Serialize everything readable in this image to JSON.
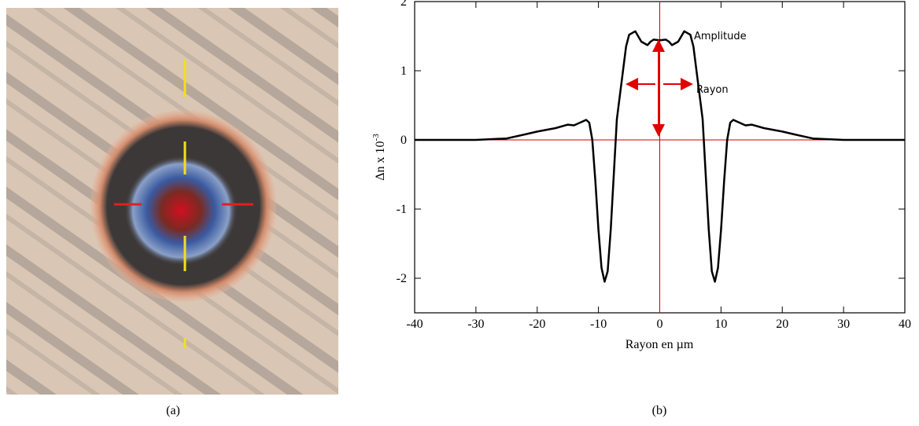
{
  "chart_data": {
    "type": "line",
    "panel_a_caption": "(a)",
    "panel_b_caption": "(b)",
    "xlabel": "Rayon en µm",
    "ylabel": "Δn x 10",
    "ylabel_exponent": "-3",
    "annotations": [
      "Amplitude",
      "Rayon"
    ],
    "xlim": [
      -40,
      40
    ],
    "xticks": [
      -40,
      -30,
      -20,
      -10,
      0,
      10,
      20,
      30,
      40
    ],
    "ylim": [
      -2.5,
      2
    ],
    "yticks": [
      -2,
      -1,
      0,
      1,
      2
    ],
    "series": [
      {
        "color": "#000000",
        "x": [
          -40,
          -30,
          -25,
          -22,
          -20,
          -17,
          -15,
          -14,
          -13,
          -12,
          -11.5,
          -11,
          -10.5,
          -10,
          -9.5,
          -9,
          -8.5,
          -8,
          -7.5,
          -7,
          -6,
          -5.5,
          -5,
          -4,
          -3,
          -2,
          -1.5,
          -1,
          0,
          1,
          1.5,
          2,
          3,
          4,
          5,
          5.5,
          6,
          7,
          7.5,
          8,
          8.5,
          9,
          9.5,
          10,
          10.5,
          11,
          11.5,
          12,
          13,
          14,
          15,
          17,
          20,
          22,
          25,
          30,
          40
        ],
        "values": [
          0,
          0,
          0.02,
          0.08,
          0.12,
          0.17,
          0.22,
          0.21,
          0.25,
          0.29,
          0.25,
          0,
          -0.6,
          -1.3,
          -1.85,
          -2.05,
          -1.9,
          -1.3,
          -0.5,
          0.3,
          1.0,
          1.35,
          1.52,
          1.57,
          1.42,
          1.37,
          1.42,
          1.45,
          1.44,
          1.45,
          1.42,
          1.37,
          1.42,
          1.57,
          1.52,
          1.35,
          1.0,
          0.3,
          -0.5,
          -1.3,
          -1.9,
          -2.05,
          -1.85,
          -1.3,
          -0.6,
          0,
          0.25,
          0.29,
          0.25,
          0.21,
          0.22,
          0.17,
          0.12,
          0.08,
          0.02,
          0,
          0
        ]
      }
    ]
  }
}
